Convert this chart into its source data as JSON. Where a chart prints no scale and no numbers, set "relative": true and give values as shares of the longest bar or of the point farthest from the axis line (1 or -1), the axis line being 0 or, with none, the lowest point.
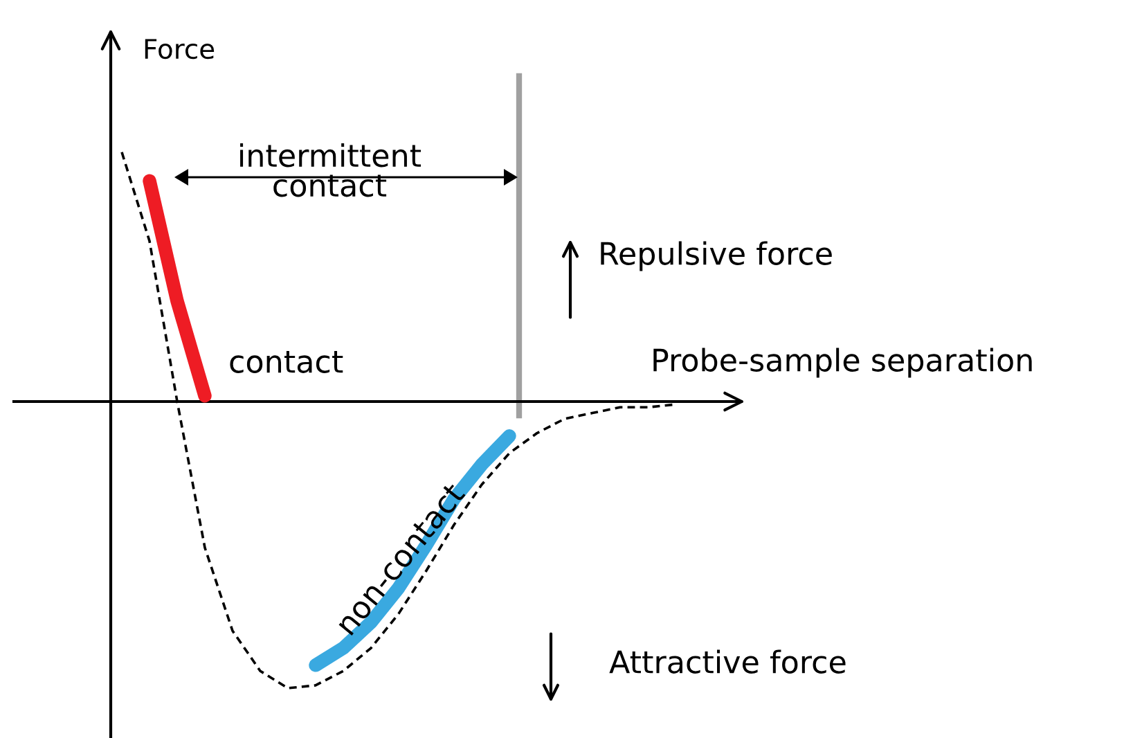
{
  "chart_data": {
    "type": "line",
    "relative": true,
    "xlabel": "Probe-sample separation",
    "ylabel": "Force",
    "categories": [
      null,
      null,
      null,
      null,
      null,
      null,
      null,
      null,
      null,
      null,
      null,
      null,
      null,
      null,
      null,
      null,
      null,
      null,
      null,
      null,
      null
    ],
    "series": [
      {
        "color": "#000000",
        "line_style": "dashed",
        "values": [
          0.87,
          0.56,
          0,
          -0.51,
          -0.8,
          -0.94,
          -1.0,
          -0.99,
          -0.94,
          -0.86,
          -0.74,
          -0.59,
          -0.43,
          -0.29,
          -0.18,
          -0.11,
          -0.06,
          -0.04,
          -0.02,
          -0.02,
          -0.01
        ]
      },
      {
        "color": "#ee1c24",
        "line_style": "solid",
        "values": [
          null,
          0.77,
          0.35,
          0.02,
          null,
          null,
          null,
          null,
          null,
          null,
          null,
          null,
          null,
          null,
          null,
          null,
          null,
          null,
          null,
          null,
          null
        ]
      },
      {
        "color": "#3aa9e0",
        "line_style": "solid",
        "values": [
          null,
          null,
          null,
          null,
          null,
          null,
          null,
          -0.92,
          -0.86,
          -0.77,
          -0.65,
          -0.5,
          -0.34,
          -0.22,
          -0.12,
          null,
          null,
          null,
          null,
          null,
          null
        ]
      }
    ],
    "ref_lines": [
      {
        "axis": "x",
        "color": "#a0a0a0",
        "line_style": "solid"
      }
    ],
    "annotations": [
      "intermittent\ncontact",
      "contact",
      "Repulsive force",
      "non-contact",
      "Attractive force"
    ],
    "legend": false,
    "marker": "none"
  }
}
